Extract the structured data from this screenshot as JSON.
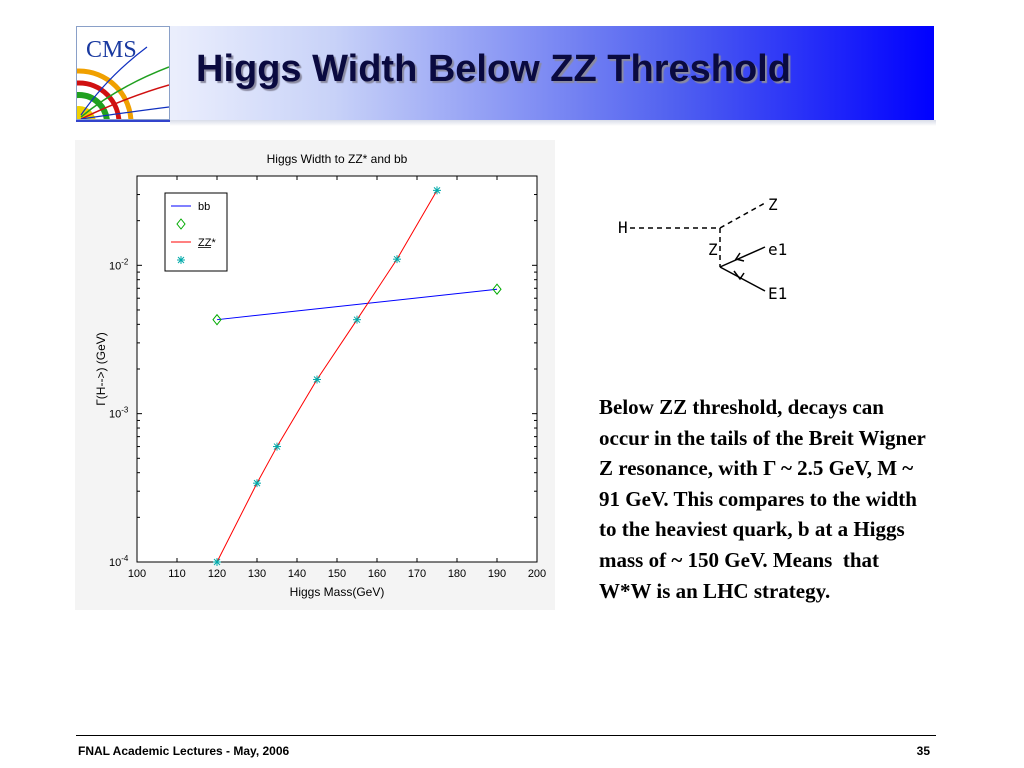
{
  "slide": {
    "title": "Higgs Width Below ZZ Threshold",
    "logo_text": "CMS",
    "description": "Below ZZ threshold, decays can occur in the tails of the Breit Wigner Z resonance, with Γ ~ 2.5 GeV, M ~ 91 GeV. This compares to the width to the heaviest quark, b at a Higgs mass of ~ 150 GeV. Means  that W*W is an LHC strategy."
  },
  "footer": {
    "left": "FNAL Academic Lectures - May, 2006",
    "page_number": "35"
  },
  "diagram": {
    "h_label": "H",
    "z_upper_label": "Z",
    "z_star_label": "Z",
    "e1_label": "e1",
    "E1_label": "E1"
  },
  "chart_data": {
    "type": "line",
    "title": "Higgs Width to ZZ* and bb",
    "xlabel": "Higgs Mass(GeV)",
    "ylabel": "Γ(H-->) (GeV)",
    "xlim": [
      100,
      200
    ],
    "ylim": [
      0.0001,
      0.04
    ],
    "yscale": "log",
    "x_ticks": [
      100,
      110,
      120,
      130,
      140,
      150,
      160,
      170,
      180,
      190,
      200
    ],
    "y_tick_labels": [
      {
        "base": "10",
        "exp": "-2",
        "value": 0.01
      },
      {
        "base": "10",
        "exp": "-3",
        "value": 0.001
      },
      {
        "base": "10",
        "exp": "-4",
        "value": 0.0001
      }
    ],
    "legend_position": "top-left",
    "series": [
      {
        "name": "bb",
        "color": "#0000ff",
        "marker": "diamond",
        "marker_color": "#00aa00",
        "line_x": [
          120,
          190
        ],
        "line_y": [
          0.0043,
          0.0069
        ],
        "points_x": [
          120,
          190
        ],
        "points_y": [
          0.0043,
          0.0069
        ]
      },
      {
        "name": "ZZ*",
        "color": "#ff0000",
        "marker": "asterisk",
        "marker_color": "#00aaaa",
        "line_x": [
          120,
          130,
          135,
          145,
          155,
          165,
          175
        ],
        "line_y": [
          0.0001,
          0.00034,
          0.0006,
          0.0017,
          0.0043,
          0.011,
          0.032
        ],
        "points_x": [
          120,
          130,
          135,
          145,
          155,
          165,
          175
        ],
        "points_y": [
          0.0001,
          0.00034,
          0.0006,
          0.0017,
          0.0043,
          0.011,
          0.032
        ]
      }
    ]
  }
}
